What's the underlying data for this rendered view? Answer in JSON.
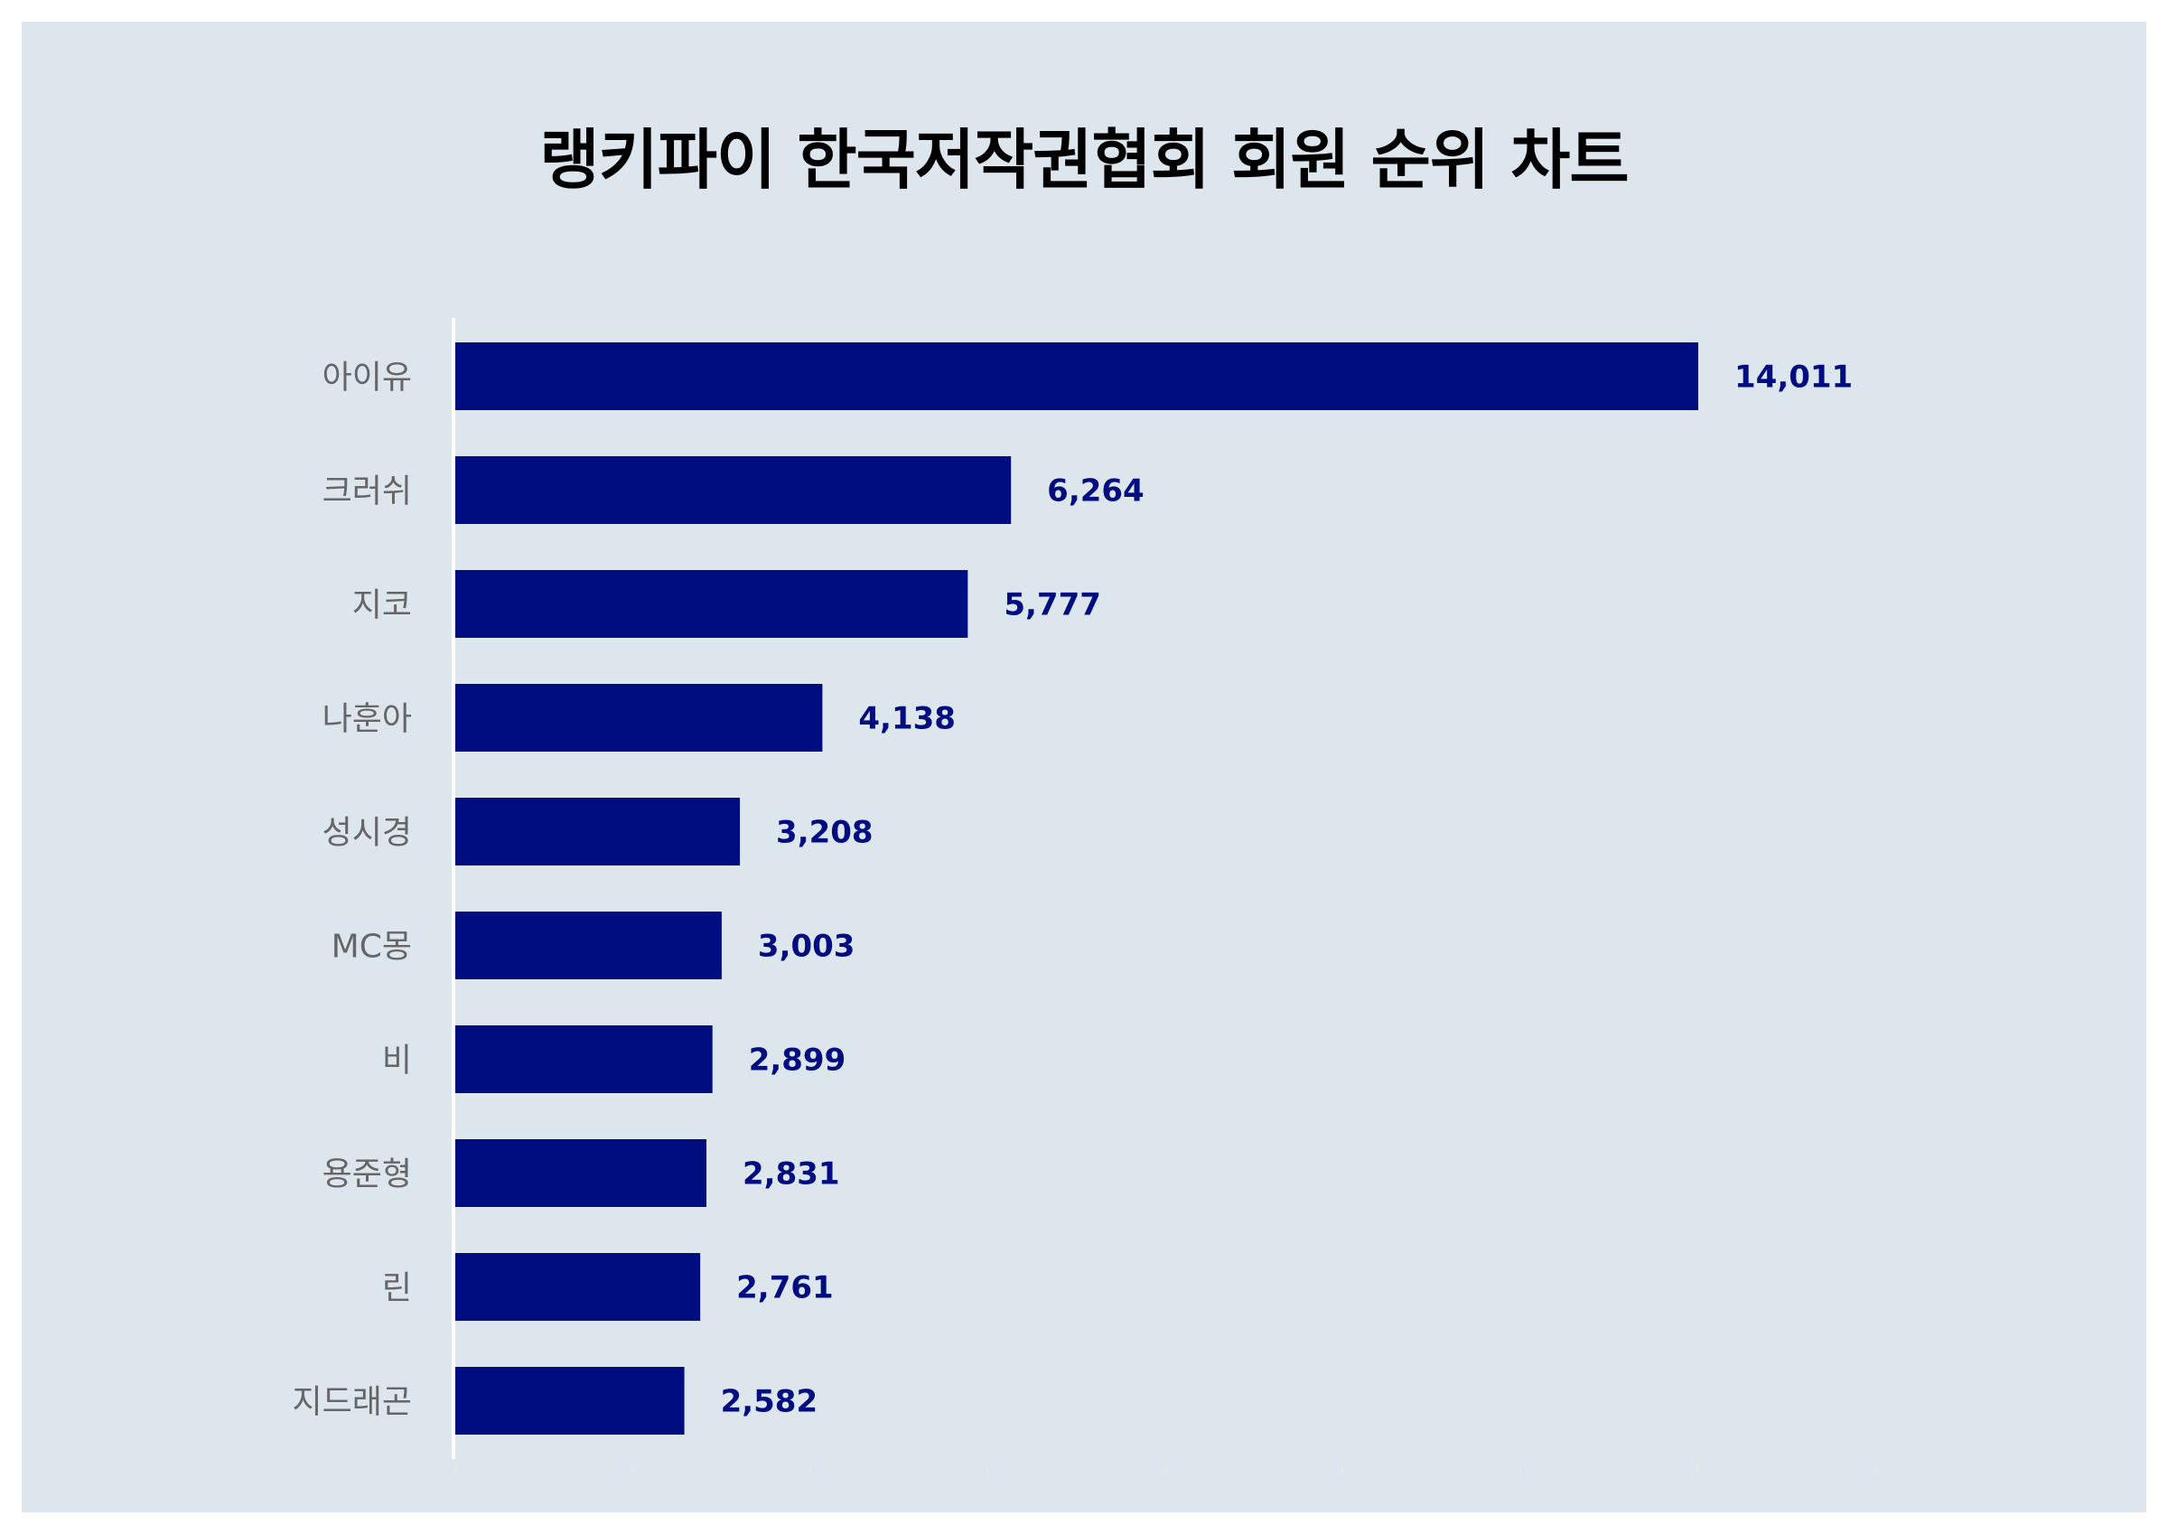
{
  "chart_data": {
    "type": "bar",
    "orientation": "horizontal",
    "title": "랭키파이 한국저작권협회 회원 순위 차트",
    "xlabel": "",
    "ylabel": "",
    "categories": [
      "아이유",
      "크러쉬",
      "지코",
      "나훈아",
      "성시경",
      "MC몽",
      "비",
      "용준형",
      "린",
      "지드래곤"
    ],
    "values": [
      14011,
      6264,
      5777,
      4138,
      3208,
      3003,
      2899,
      2831,
      2761,
      2582
    ],
    "value_labels": [
      "14,011",
      "6,264",
      "5,777",
      "4,138",
      "3,208",
      "3,003",
      "2,899",
      "2,831",
      "2,761",
      "2,582"
    ],
    "xlim": [
      0,
      16000
    ],
    "grid": false,
    "legend": "none",
    "bar_color": "#000d80",
    "value_label_color": "#000d80",
    "background_color": "#dce6ec"
  }
}
